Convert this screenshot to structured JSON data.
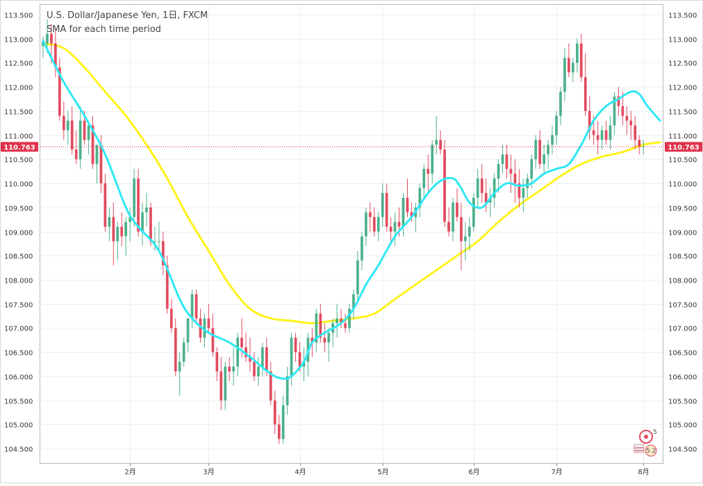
{
  "header": {
    "title": "U.S. Dollar/Japanese Yen, 1日, FXCM",
    "subtitle": "SMA for each time period"
  },
  "price_tag": {
    "value": "110.763",
    "color": "#e0314b"
  },
  "colors": {
    "up": "#4db08a",
    "down": "#e24b5f",
    "sma_fast": "#2ee8f4",
    "sma_slow": "#fff21a"
  },
  "logo": {
    "icon": "tradingview-logo-icon",
    "text_top": "5",
    "text_bottom": "5 2"
  },
  "chart_data": {
    "type": "candlestick",
    "title": "U.S. Dollar/Japanese Yen, 1日, FXCM",
    "subtitle": "SMA for each time period",
    "ylim": [
      104.2,
      113.7
    ],
    "y_ticks": [
      104.5,
      105.0,
      105.5,
      106.0,
      106.5,
      107.0,
      107.5,
      108.0,
      108.5,
      109.0,
      109.5,
      110.0,
      110.5,
      111.0,
      111.5,
      112.0,
      112.5,
      113.0,
      113.5
    ],
    "y_tick_labels": [
      "104.500",
      "105.000",
      "105.500",
      "106.000",
      "106.500",
      "107.000",
      "107.500",
      "108.000",
      "108.500",
      "109.000",
      "109.500",
      "110.000",
      "110.500",
      "111.000",
      "111.500",
      "112.000",
      "112.500",
      "113.000",
      "113.500"
    ],
    "x_label_ticks": [
      {
        "index": 21,
        "label": "2月"
      },
      {
        "index": 40,
        "label": "3月"
      },
      {
        "index": 62,
        "label": "4月"
      },
      {
        "index": 82,
        "label": "5月"
      },
      {
        "index": 104,
        "label": "6月"
      },
      {
        "index": 124,
        "label": "7月"
      },
      {
        "index": 145,
        "label": "8月"
      }
    ],
    "x_count": 150,
    "last_price": 110.763,
    "candles": [
      [
        112.85,
        113.05,
        112.6,
        112.95
      ],
      [
        112.9,
        113.4,
        112.7,
        113.1
      ],
      [
        113.1,
        113.3,
        112.5,
        112.9
      ],
      [
        112.9,
        113.2,
        112.2,
        112.4
      ],
      [
        112.4,
        112.6,
        111.3,
        111.4
      ],
      [
        111.4,
        111.7,
        110.9,
        111.1
      ],
      [
        111.1,
        111.5,
        110.8,
        111.3
      ],
      [
        111.3,
        111.6,
        110.6,
        110.7
      ],
      [
        110.7,
        111.1,
        110.4,
        110.5
      ],
      [
        110.5,
        111.6,
        110.3,
        111.3
      ],
      [
        111.3,
        111.5,
        110.8,
        110.9
      ],
      [
        110.9,
        111.3,
        110.6,
        111.2
      ],
      [
        111.2,
        111.4,
        110.3,
        110.4
      ],
      [
        110.4,
        110.8,
        110.0,
        110.8
      ],
      [
        110.8,
        111.0,
        109.8,
        110.0
      ],
      [
        110.0,
        110.2,
        109.0,
        109.1
      ],
      [
        109.1,
        109.5,
        108.8,
        109.3
      ],
      [
        109.3,
        109.6,
        108.3,
        108.8
      ],
      [
        108.8,
        109.2,
        108.4,
        109.1
      ],
      [
        109.1,
        109.4,
        108.7,
        108.9
      ],
      [
        108.9,
        109.3,
        108.5,
        109.2
      ],
      [
        109.2,
        109.5,
        108.8,
        109.3
      ],
      [
        109.3,
        110.3,
        109.1,
        110.1
      ],
      [
        110.1,
        110.3,
        108.9,
        109.0
      ],
      [
        109.0,
        109.6,
        108.7,
        109.4
      ],
      [
        109.4,
        109.8,
        109.1,
        109.5
      ],
      [
        109.5,
        109.6,
        108.7,
        108.8
      ],
      [
        108.8,
        109.1,
        108.6,
        108.8
      ],
      [
        108.8,
        109.2,
        108.6,
        108.8
      ],
      [
        108.8,
        109.0,
        108.1,
        108.3
      ],
      [
        108.3,
        108.5,
        107.3,
        107.4
      ],
      [
        107.4,
        107.6,
        106.9,
        107.0
      ],
      [
        107.0,
        107.2,
        106.0,
        106.1
      ],
      [
        106.1,
        106.5,
        105.6,
        106.3
      ],
      [
        106.3,
        106.8,
        106.2,
        106.7
      ],
      [
        106.7,
        107.2,
        106.5,
        107.2
      ],
      [
        107.2,
        107.8,
        107.0,
        107.7
      ],
      [
        107.7,
        107.8,
        107.1,
        107.2
      ],
      [
        107.2,
        107.4,
        106.7,
        106.8
      ],
      [
        106.8,
        107.3,
        106.6,
        107.2
      ],
      [
        107.2,
        107.5,
        106.9,
        107.0
      ],
      [
        107.0,
        107.3,
        106.4,
        106.5
      ],
      [
        106.5,
        106.6,
        105.9,
        106.1
      ],
      [
        106.1,
        106.4,
        105.3,
        105.5
      ],
      [
        105.5,
        106.3,
        105.3,
        106.2
      ],
      [
        106.2,
        106.4,
        105.9,
        106.1
      ],
      [
        106.1,
        106.6,
        105.8,
        106.2
      ],
      [
        106.2,
        106.9,
        106.0,
        106.8
      ],
      [
        106.8,
        107.2,
        106.4,
        106.6
      ],
      [
        106.6,
        106.9,
        106.3,
        106.4
      ],
      [
        106.4,
        106.8,
        106.1,
        106.3
      ],
      [
        106.3,
        106.5,
        105.9,
        106.0
      ],
      [
        106.0,
        106.4,
        105.8,
        106.2
      ],
      [
        106.2,
        106.7,
        106.0,
        106.6
      ],
      [
        106.6,
        106.8,
        106.0,
        106.1
      ],
      [
        106.1,
        106.3,
        105.4,
        105.5
      ],
      [
        105.5,
        105.7,
        104.8,
        105.0
      ],
      [
        105.0,
        105.2,
        104.6,
        104.7
      ],
      [
        104.7,
        105.6,
        104.6,
        105.4
      ],
      [
        105.4,
        106.2,
        105.2,
        106.0
      ],
      [
        106.0,
        106.9,
        105.8,
        106.8
      ],
      [
        106.8,
        106.9,
        106.3,
        106.5
      ],
      [
        106.5,
        106.7,
        106.1,
        106.2
      ],
      [
        106.2,
        106.6,
        105.9,
        106.3
      ],
      [
        106.3,
        106.9,
        106.0,
        106.8
      ],
      [
        106.8,
        107.0,
        106.4,
        106.7
      ],
      [
        106.7,
        107.4,
        106.5,
        107.3
      ],
      [
        107.3,
        107.5,
        106.7,
        106.8
      ],
      [
        106.8,
        107.1,
        106.5,
        106.7
      ],
      [
        106.7,
        107.0,
        106.3,
        106.9
      ],
      [
        106.9,
        107.2,
        106.6,
        107.1
      ],
      [
        107.1,
        107.5,
        106.8,
        107.2
      ],
      [
        107.2,
        107.4,
        107.0,
        107.1
      ],
      [
        107.1,
        107.3,
        106.9,
        107.0
      ],
      [
        107.0,
        107.5,
        106.9,
        107.4
      ],
      [
        107.4,
        107.8,
        107.2,
        107.7
      ],
      [
        107.7,
        108.6,
        107.6,
        108.4
      ],
      [
        108.4,
        109.0,
        108.2,
        108.9
      ],
      [
        108.9,
        109.5,
        108.7,
        109.4
      ],
      [
        109.4,
        109.6,
        109.0,
        109.3
      ],
      [
        109.3,
        109.5,
        108.9,
        109.0
      ],
      [
        109.0,
        109.4,
        108.8,
        109.3
      ],
      [
        109.3,
        110.0,
        109.1,
        109.8
      ],
      [
        109.8,
        110.0,
        109.0,
        109.1
      ],
      [
        109.1,
        109.3,
        108.8,
        109.0
      ],
      [
        109.0,
        109.4,
        108.7,
        109.2
      ],
      [
        109.2,
        109.5,
        108.9,
        109.1
      ],
      [
        109.1,
        109.8,
        108.9,
        109.7
      ],
      [
        109.7,
        110.1,
        109.3,
        109.4
      ],
      [
        109.4,
        109.6,
        109.2,
        109.3
      ],
      [
        109.3,
        109.6,
        109.0,
        109.5
      ],
      [
        109.5,
        110.0,
        109.3,
        109.9
      ],
      [
        109.9,
        110.4,
        109.7,
        110.3
      ],
      [
        110.3,
        110.6,
        109.8,
        110.2
      ],
      [
        110.2,
        110.9,
        110.0,
        110.8
      ],
      [
        110.8,
        111.4,
        110.6,
        110.9
      ],
      [
        110.9,
        111.1,
        110.6,
        110.7
      ],
      [
        110.7,
        110.9,
        109.1,
        109.2
      ],
      [
        109.2,
        109.5,
        108.9,
        109.0
      ],
      [
        109.0,
        109.7,
        108.8,
        109.6
      ],
      [
        109.6,
        109.9,
        109.2,
        109.3
      ],
      [
        109.3,
        109.6,
        108.2,
        108.8
      ],
      [
        108.8,
        109.2,
        108.4,
        108.9
      ],
      [
        108.9,
        109.3,
        108.6,
        109.1
      ],
      [
        109.1,
        109.8,
        109.0,
        109.7
      ],
      [
        109.7,
        110.3,
        109.5,
        110.1
      ],
      [
        110.1,
        110.4,
        109.6,
        109.8
      ],
      [
        109.8,
        110.1,
        109.4,
        109.6
      ],
      [
        109.6,
        109.9,
        109.3,
        109.7
      ],
      [
        109.7,
        110.2,
        109.5,
        110.1
      ],
      [
        110.1,
        110.5,
        109.8,
        110.4
      ],
      [
        110.4,
        110.8,
        110.2,
        110.6
      ],
      [
        110.6,
        110.8,
        110.1,
        110.3
      ],
      [
        110.3,
        110.6,
        109.8,
        110.2
      ],
      [
        110.2,
        110.5,
        109.6,
        110.0
      ],
      [
        110.0,
        110.3,
        109.5,
        109.7
      ],
      [
        109.7,
        110.1,
        109.4,
        109.9
      ],
      [
        109.9,
        110.2,
        109.7,
        110.1
      ],
      [
        110.1,
        110.6,
        109.9,
        110.5
      ],
      [
        110.5,
        111.0,
        110.3,
        110.9
      ],
      [
        110.9,
        111.1,
        110.3,
        110.4
      ],
      [
        110.4,
        110.8,
        110.2,
        110.6
      ],
      [
        110.6,
        110.9,
        110.3,
        110.8
      ],
      [
        110.8,
        111.2,
        110.6,
        111.0
      ],
      [
        111.0,
        111.5,
        110.8,
        111.4
      ],
      [
        111.4,
        112.0,
        111.2,
        111.9
      ],
      [
        111.9,
        112.8,
        111.7,
        112.6
      ],
      [
        112.6,
        112.9,
        112.2,
        112.3
      ],
      [
        112.3,
        112.6,
        112.1,
        112.5
      ],
      [
        112.5,
        113.0,
        112.3,
        112.9
      ],
      [
        112.9,
        113.1,
        112.1,
        112.2
      ],
      [
        112.2,
        112.7,
        111.4,
        111.5
      ],
      [
        111.5,
        111.8,
        110.9,
        111.1
      ],
      [
        111.1,
        111.4,
        110.8,
        111.0
      ],
      [
        111.0,
        111.3,
        110.6,
        110.9
      ],
      [
        110.9,
        111.2,
        110.7,
        111.1
      ],
      [
        111.1,
        111.3,
        110.8,
        110.9
      ],
      [
        110.9,
        111.4,
        110.7,
        111.2
      ],
      [
        111.2,
        111.9,
        111.0,
        111.8
      ],
      [
        111.8,
        112.0,
        111.4,
        111.6
      ],
      [
        111.6,
        111.9,
        111.2,
        111.4
      ],
      [
        111.4,
        111.6,
        111.0,
        111.3
      ],
      [
        111.3,
        111.5,
        110.9,
        111.2
      ],
      [
        111.2,
        111.4,
        110.7,
        110.9
      ],
      [
        110.9,
        111.0,
        110.6,
        110.763
      ],
      [
        110.763,
        110.9,
        110.6,
        110.763
      ]
    ],
    "sma_fast_points": [
      [
        0,
        112.95
      ],
      [
        5,
        112.1
      ],
      [
        10,
        111.4
      ],
      [
        15,
        110.6
      ],
      [
        20,
        109.5
      ],
      [
        23,
        109.1
      ],
      [
        28,
        108.6
      ],
      [
        33,
        107.6
      ],
      [
        36,
        107.2
      ],
      [
        40,
        106.9
      ],
      [
        45,
        106.7
      ],
      [
        50,
        106.4
      ],
      [
        55,
        106.05
      ],
      [
        58,
        105.95
      ],
      [
        60,
        106.0
      ],
      [
        63,
        106.3
      ],
      [
        65,
        106.7
      ],
      [
        68,
        106.9
      ],
      [
        72,
        107.1
      ],
      [
        75,
        107.4
      ],
      [
        78,
        107.9
      ],
      [
        81,
        108.3
      ],
      [
        85,
        108.9
      ],
      [
        89,
        109.3
      ],
      [
        93,
        109.8
      ],
      [
        96,
        110.05
      ],
      [
        99,
        110.1
      ],
      [
        101,
        109.9
      ],
      [
        103,
        109.6
      ],
      [
        106,
        109.5
      ],
      [
        109,
        109.8
      ],
      [
        112,
        110.0
      ],
      [
        115,
        109.95
      ],
      [
        118,
        110.0
      ],
      [
        121,
        110.2
      ],
      [
        124,
        110.3
      ],
      [
        127,
        110.4
      ],
      [
        130,
        110.8
      ],
      [
        133,
        111.3
      ],
      [
        136,
        111.6
      ],
      [
        139,
        111.75
      ],
      [
        142,
        111.9
      ],
      [
        144,
        111.85
      ],
      [
        146,
        111.6
      ],
      [
        149,
        111.3
      ]
    ],
    "sma_slow_points": [
      [
        0,
        112.9
      ],
      [
        5,
        112.8
      ],
      [
        10,
        112.4
      ],
      [
        15,
        111.9
      ],
      [
        20,
        111.4
      ],
      [
        25,
        110.8
      ],
      [
        30,
        110.1
      ],
      [
        35,
        109.3
      ],
      [
        40,
        108.6
      ],
      [
        45,
        107.9
      ],
      [
        50,
        107.4
      ],
      [
        55,
        107.2
      ],
      [
        60,
        107.15
      ],
      [
        65,
        107.1
      ],
      [
        70,
        107.15
      ],
      [
        75,
        107.2
      ],
      [
        80,
        107.3
      ],
      [
        85,
        107.6
      ],
      [
        90,
        107.9
      ],
      [
        95,
        108.2
      ],
      [
        100,
        108.5
      ],
      [
        105,
        108.8
      ],
      [
        110,
        109.2
      ],
      [
        115,
        109.55
      ],
      [
        120,
        109.85
      ],
      [
        125,
        110.15
      ],
      [
        130,
        110.4
      ],
      [
        135,
        110.55
      ],
      [
        140,
        110.65
      ],
      [
        145,
        110.8
      ],
      [
        149,
        110.85
      ]
    ]
  }
}
